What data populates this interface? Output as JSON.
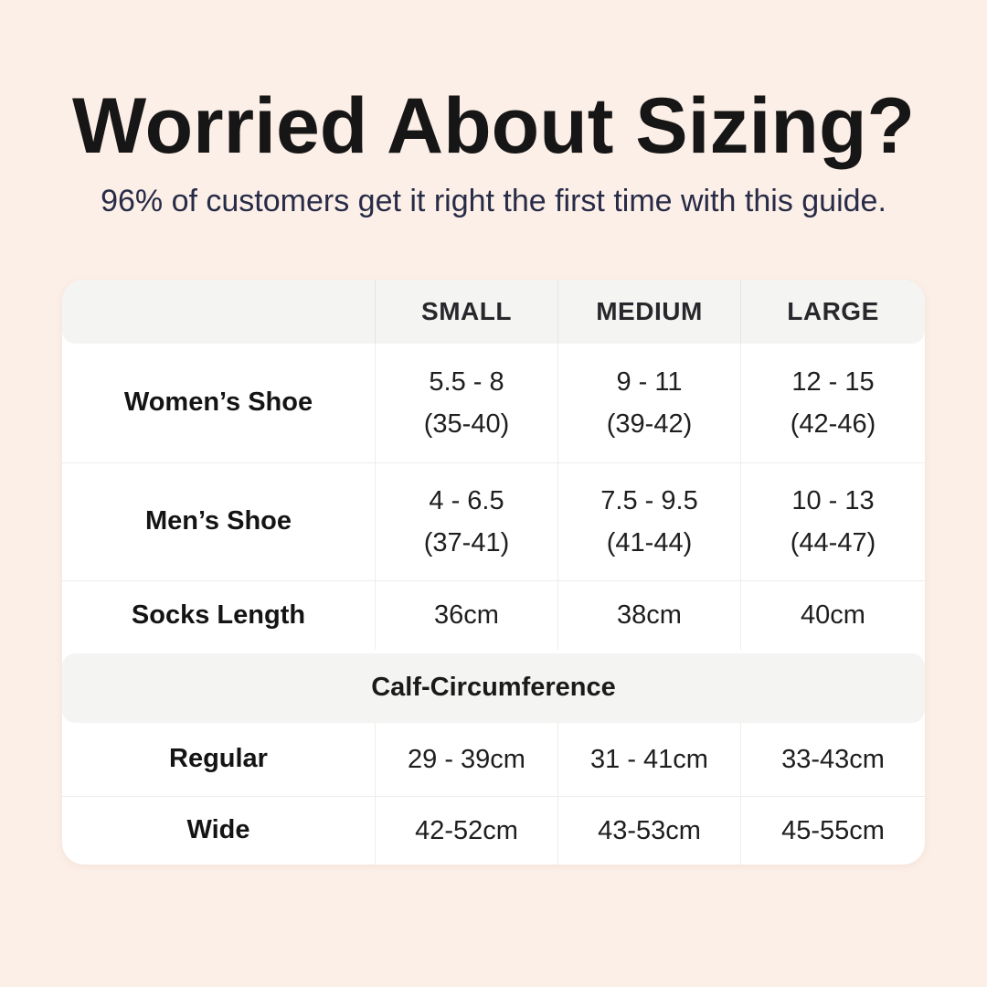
{
  "header": {
    "title": "Worried About Sizing?",
    "subtitle": "96% of customers get it right the first time with this guide."
  },
  "table": {
    "column_headers": [
      "",
      "SMALL",
      "MEDIUM",
      "LARGE"
    ],
    "shoe_rows": [
      {
        "label": "Women’s Shoe",
        "small": {
          "line1": "5.5 - 8",
          "line2": "(35-40)"
        },
        "medium": {
          "line1": "9 - 11",
          "line2": "(39-42)"
        },
        "large": {
          "line1": "12 - 15",
          "line2": "(42-46)"
        }
      },
      {
        "label": "Men’s Shoe",
        "small": {
          "line1": "4 - 6.5",
          "line2": "(37-41)"
        },
        "medium": {
          "line1": "7.5 - 9.5",
          "line2": "(41-44)"
        },
        "large": {
          "line1": "10 - 13",
          "line2": "(44-47)"
        }
      }
    ],
    "socks_row": {
      "label": "Socks Length",
      "small": "36cm",
      "medium": "38cm",
      "large": "40cm"
    },
    "section_header": "Calf-Circumference",
    "calf_rows": [
      {
        "label": "Regular",
        "small": "29 - 39cm",
        "medium": "31 - 41cm",
        "large": "33-43cm"
      },
      {
        "label": "Wide",
        "small": "42-52cm",
        "medium": "43-53cm",
        "large": "45-55cm"
      }
    ]
  },
  "colors": {
    "page_background": "#fcefe7",
    "card_background": "#ffffff",
    "band_background": "#f4f4f2",
    "title_text": "#161616",
    "subtitle_text": "#272b47",
    "body_text": "#1e1e1e",
    "divider": "#ededeb"
  },
  "chart_data": {
    "type": "table",
    "title": "Worried About Sizing?",
    "subtitle": "96% of customers get it right the first time with this guide.",
    "columns": [
      "",
      "SMALL",
      "MEDIUM",
      "LARGE"
    ],
    "rows": [
      [
        "Women’s Shoe",
        "5.5 - 8 (35-40)",
        "9 - 11 (39-42)",
        "12 - 15 (42-46)"
      ],
      [
        "Men’s Shoe",
        "4 - 6.5 (37-41)",
        "7.5 - 9.5 (41-44)",
        "10 - 13 (44-47)"
      ],
      [
        "Socks Length",
        "36cm",
        "38cm",
        "40cm"
      ],
      [
        "Calf-Circumference",
        "",
        "",
        ""
      ],
      [
        "Regular",
        "29 - 39cm",
        "31 - 41cm",
        "33-43cm"
      ],
      [
        "Wide",
        "42-52cm",
        "43-53cm",
        "45-55cm"
      ]
    ]
  }
}
